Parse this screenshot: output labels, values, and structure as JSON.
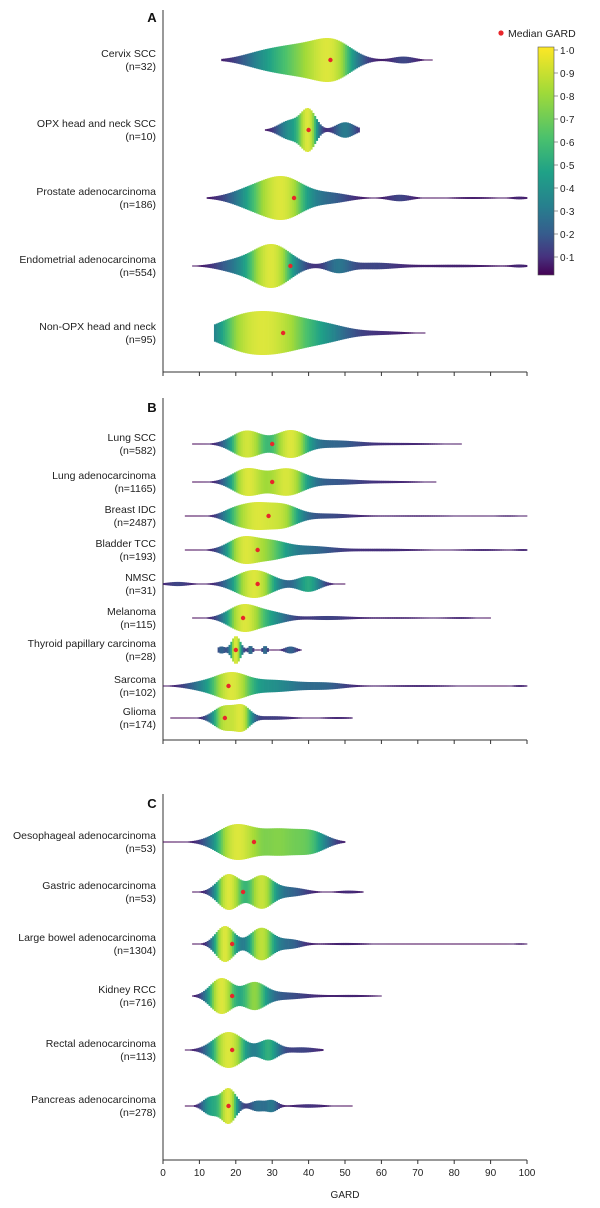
{
  "chart_data": {
    "type": "violin",
    "xlabel": "GARD",
    "xlim": [
      0,
      100
    ],
    "xticks": [
      0,
      10,
      20,
      30,
      40,
      50,
      60,
      70,
      80,
      90,
      100
    ],
    "legend": {
      "label": "Median GARD",
      "marker_color": "#e8262a",
      "placement": "top-right"
    },
    "colorbar": {
      "ticks": [
        "1·0",
        "0·9",
        "0·8",
        "0·7",
        "0·6",
        "0·5",
        "0·4",
        "0·3",
        "0·2",
        "0·1"
      ],
      "colors": [
        "#fde725",
        "#b5de2b",
        "#6ece58",
        "#35b779",
        "#1f9e89",
        "#26828e",
        "#31688e",
        "#3e4989",
        "#482878",
        "#440154"
      ]
    },
    "panels": [
      {
        "letter": "A",
        "groups": [
          {
            "name": "Cervix SCC",
            "n": "(n=32)",
            "median": 46,
            "range": [
              16,
              74
            ],
            "modes": [
              [
                28,
                0.45,
                6
              ],
              [
                38,
                0.7,
                6
              ],
              [
                47,
                1.0,
                5
              ],
              [
                66,
                0.2,
                3
              ]
            ]
          },
          {
            "name": "OPX head and neck SCC",
            "n": "(n=10)",
            "median": 40,
            "range": [
              28,
              54
            ],
            "modes": [
              [
                35,
                0.5,
                3
              ],
              [
                40,
                1.0,
                2
              ],
              [
                50,
                0.4,
                2.5
              ]
            ]
          },
          {
            "name": "Prostate adenocarcinoma",
            "n": "(n=186)",
            "median": 36,
            "range": [
              12,
              100
            ],
            "modes": [
              [
                26,
                0.7,
                6
              ],
              [
                34,
                1.0,
                5
              ],
              [
                46,
                0.3,
                5
              ],
              [
                65,
                0.2,
                3
              ],
              [
                85,
                0.06,
                6
              ],
              [
                98,
                0.08,
                2
              ]
            ]
          },
          {
            "name": "Endometrial adenocarcinoma",
            "n": "(n=554)",
            "median": 35,
            "range": [
              8,
              100
            ],
            "modes": [
              [
                20,
                0.25,
                5
              ],
              [
                30,
                1.0,
                5
              ],
              [
                48,
                0.3,
                3
              ],
              [
                58,
                0.15,
                6
              ],
              [
                80,
                0.06,
                10
              ],
              [
                98,
                0.06,
                2
              ]
            ]
          },
          {
            "name": "Non-OPX head and neck",
            "n": "(n=95)",
            "median": 33,
            "range": [
              14,
              72
            ],
            "modes": [
              [
                22,
                0.9,
                7
              ],
              [
                33,
                0.85,
                7
              ],
              [
                45,
                0.4,
                6
              ],
              [
                60,
                0.1,
                6
              ]
            ]
          }
        ]
      },
      {
        "letter": "B",
        "groups": [
          {
            "name": "Lung SCC",
            "n": "(n=582)",
            "median": 30,
            "range": [
              8,
              82
            ],
            "modes": [
              [
                23,
                1.0,
                4
              ],
              [
                35,
                1.0,
                4
              ],
              [
                47,
                0.25,
                6
              ],
              [
                65,
                0.08,
                10
              ]
            ]
          },
          {
            "name": "Lung adenocarcinoma",
            "n": "(n=1165)",
            "median": 30,
            "range": [
              8,
              75
            ],
            "modes": [
              [
                23,
                1.0,
                4
              ],
              [
                34,
                1.0,
                4.5
              ],
              [
                47,
                0.2,
                6
              ],
              [
                62,
                0.08,
                8
              ]
            ]
          },
          {
            "name": "Breast IDC",
            "n": "(n=2487)",
            "median": 29,
            "range": [
              6,
              100
            ],
            "modes": [
              [
                19,
                0.4,
                3
              ],
              [
                25,
                1.0,
                4
              ],
              [
                33,
                0.9,
                4
              ],
              [
                45,
                0.2,
                6
              ],
              [
                70,
                0.06,
                12
              ],
              [
                95,
                0.05,
                4
              ]
            ]
          },
          {
            "name": "Bladder TCC",
            "n": "(n=193)",
            "median": 26,
            "range": [
              6,
              100
            ],
            "modes": [
              [
                22,
                1.0,
                4
              ],
              [
                30,
                0.6,
                4
              ],
              [
                40,
                0.3,
                6
              ],
              [
                60,
                0.1,
                10
              ],
              [
                88,
                0.07,
                6
              ],
              [
                99,
                0.06,
                2
              ]
            ]
          },
          {
            "name": "NMSC",
            "n": "(n=31)",
            "median": 26,
            "range": [
              0,
              50
            ],
            "modes": [
              [
                4,
                0.15,
                3
              ],
              [
                25,
                1.0,
                5
              ],
              [
                40,
                0.55,
                3
              ]
            ]
          },
          {
            "name": "Melanoma",
            "n": "(n=115)",
            "median": 22,
            "range": [
              8,
              90
            ],
            "modes": [
              [
                22,
                1.0,
                4
              ],
              [
                30,
                0.4,
                4
              ],
              [
                45,
                0.15,
                6
              ],
              [
                65,
                0.06,
                8
              ],
              [
                82,
                0.06,
                4
              ]
            ]
          },
          {
            "name": "Thyroid papillary carcinoma",
            "n": "(n=28)",
            "median": 20,
            "range": [
              15,
              38
            ],
            "modes": [
              [
                16,
                0.25,
                1
              ],
              [
                20,
                1.0,
                1.2
              ],
              [
                24,
                0.3,
                0.6
              ],
              [
                28,
                0.3,
                0.6
              ],
              [
                35,
                0.25,
                1.5
              ]
            ]
          },
          {
            "name": "Sarcoma",
            "n": "(n=102)",
            "median": 18,
            "range": [
              0,
              100
            ],
            "modes": [
              [
                12,
                0.3,
                5
              ],
              [
                19,
                0.7,
                4
              ],
              [
                30,
                0.4,
                7
              ],
              [
                45,
                0.2,
                5
              ],
              [
                70,
                0.06,
                10
              ],
              [
                98,
                0.06,
                2
              ]
            ]
          },
          {
            "name": "Glioma",
            "n": "(n=174)",
            "median": 17,
            "range": [
              2,
              52
            ],
            "modes": [
              [
                17,
                1.0,
                3
              ],
              [
                22,
                0.8,
                2
              ],
              [
                30,
                0.15,
                5
              ],
              [
                48,
                0.08,
                4
              ]
            ]
          }
        ]
      },
      {
        "letter": "C",
        "groups": [
          {
            "name": "Oesophageal adenocarcinoma",
            "n": "(n=53)",
            "median": 25,
            "range": [
              0,
              50
            ],
            "modes": [
              [
                20,
                1.0,
                5
              ],
              [
                32,
                0.7,
                5
              ],
              [
                41,
                0.55,
                4
              ]
            ]
          },
          {
            "name": "Gastric adenocarcinoma",
            "n": "(n=53)",
            "median": 22,
            "range": [
              8,
              55
            ],
            "modes": [
              [
                18,
                1.0,
                3
              ],
              [
                27,
                0.9,
                3
              ],
              [
                35,
                0.25,
                4
              ],
              [
                51,
                0.08,
                3
              ]
            ]
          },
          {
            "name": "Large bowel adenocarcinoma",
            "n": "(n=1304)",
            "median": 19,
            "range": [
              8,
              100
            ],
            "modes": [
              [
                17,
                1.0,
                2.5
              ],
              [
                27,
                0.9,
                3
              ],
              [
                35,
                0.25,
                3
              ],
              [
                50,
                0.06,
                6
              ],
              [
                98,
                0.04,
                2
              ]
            ]
          },
          {
            "name": "Kidney RCC",
            "n": "(n=716)",
            "median": 19,
            "range": [
              8,
              60
            ],
            "modes": [
              [
                16,
                1.0,
                3
              ],
              [
                25,
                0.7,
                3
              ],
              [
                33,
                0.2,
                6
              ],
              [
                52,
                0.06,
                6
              ]
            ]
          },
          {
            "name": "Rectal adenocarcinoma",
            "n": "(n=113)",
            "median": 19,
            "range": [
              6,
              44
            ],
            "modes": [
              [
                18,
                1.0,
                4
              ],
              [
                29,
                0.55,
                2.5
              ],
              [
                38,
                0.15,
                4
              ]
            ]
          },
          {
            "name": "Pancreas adenocarcinoma",
            "n": "(n=278)",
            "median": 18,
            "range": [
              6,
              52
            ],
            "modes": [
              [
                13,
                0.5,
                2
              ],
              [
                18,
                1.0,
                2
              ],
              [
                26,
                0.3,
                2
              ],
              [
                30,
                0.3,
                1.5
              ],
              [
                40,
                0.1,
                4
              ]
            ]
          }
        ]
      }
    ]
  }
}
